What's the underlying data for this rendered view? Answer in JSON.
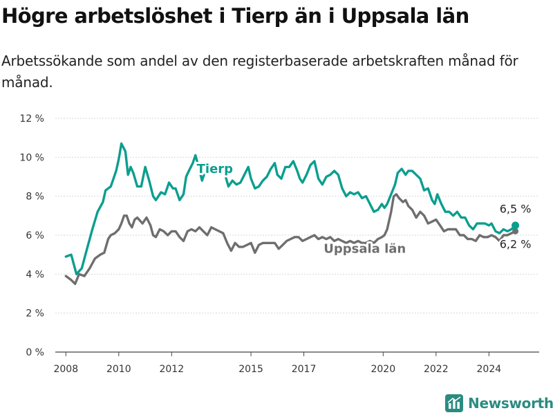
{
  "title": "Högre arbetslöshet i Tierp än i Uppsala län",
  "subtitle": "Arbetssökande som andel av den registerbaserade arbetskraften månad för månad.",
  "brand": "Newsworthy",
  "colors": {
    "tierp": "#0b9e8f",
    "uppsala": "#6e6e6e",
    "grid": "#d7d7d7",
    "brand": "#2a8c80"
  },
  "chart_data": {
    "type": "line",
    "xlim": [
      2007.6,
      2025.9
    ],
    "ylim": [
      0,
      12
    ],
    "y_ticks": [
      0,
      2,
      4,
      6,
      8,
      10,
      12
    ],
    "y_tick_labels": [
      "0 %",
      "2 %",
      "4 %",
      "6 %",
      "8 %",
      "10 %",
      "12 %"
    ],
    "x_ticks": [
      2008,
      2010,
      2012,
      2015,
      2017,
      2020,
      2022,
      2024
    ],
    "x_tick_labels": [
      "2008",
      "2010",
      "2012",
      "2015",
      "2017",
      "2020",
      "2022",
      "2024"
    ],
    "grid": true,
    "series": [
      {
        "name": "Tierp",
        "end_label": "6,5 %",
        "points": [
          [
            2008.0,
            4.9
          ],
          [
            2008.2,
            5.0
          ],
          [
            2008.4,
            4.0
          ],
          [
            2008.6,
            4.3
          ],
          [
            2008.8,
            5.3
          ],
          [
            2009.0,
            6.3
          ],
          [
            2009.2,
            7.2
          ],
          [
            2009.4,
            7.7
          ],
          [
            2009.5,
            8.3
          ],
          [
            2009.7,
            8.5
          ],
          [
            2009.9,
            9.3
          ],
          [
            2010.0,
            9.9
          ],
          [
            2010.1,
            10.7
          ],
          [
            2010.25,
            10.3
          ],
          [
            2010.35,
            9.1
          ],
          [
            2010.45,
            9.5
          ],
          [
            2010.55,
            9.2
          ],
          [
            2010.7,
            8.5
          ],
          [
            2010.85,
            8.5
          ],
          [
            2011.0,
            9.5
          ],
          [
            2011.15,
            8.8
          ],
          [
            2011.3,
            8.0
          ],
          [
            2011.4,
            7.8
          ],
          [
            2011.6,
            8.2
          ],
          [
            2011.75,
            8.1
          ],
          [
            2011.9,
            8.7
          ],
          [
            2012.05,
            8.4
          ],
          [
            2012.15,
            8.4
          ],
          [
            2012.3,
            7.8
          ],
          [
            2012.45,
            8.1
          ],
          [
            2012.55,
            9.0
          ],
          [
            2012.65,
            9.3
          ],
          [
            2012.8,
            9.7
          ],
          [
            2012.9,
            10.1
          ],
          [
            2013.0,
            9.6
          ],
          [
            2013.15,
            8.8
          ],
          [
            2013.3,
            9.4
          ],
          [
            2013.5,
            9.2
          ],
          [
            2013.7,
            9.5
          ],
          [
            2013.9,
            9.4
          ],
          [
            2014.0,
            9.2
          ],
          [
            2014.15,
            8.5
          ],
          [
            2014.3,
            8.8
          ],
          [
            2014.45,
            8.6
          ],
          [
            2014.6,
            8.7
          ],
          [
            2014.75,
            9.1
          ],
          [
            2014.9,
            9.5
          ],
          [
            2015.0,
            8.9
          ],
          [
            2015.15,
            8.4
          ],
          [
            2015.3,
            8.5
          ],
          [
            2015.45,
            8.8
          ],
          [
            2015.6,
            9.0
          ],
          [
            2015.75,
            9.4
          ],
          [
            2015.9,
            9.7
          ],
          [
            2016.0,
            9.1
          ],
          [
            2016.15,
            8.9
          ],
          [
            2016.3,
            9.5
          ],
          [
            2016.45,
            9.5
          ],
          [
            2016.6,
            9.8
          ],
          [
            2016.75,
            9.3
          ],
          [
            2016.85,
            8.9
          ],
          [
            2016.95,
            8.7
          ],
          [
            2017.1,
            9.1
          ],
          [
            2017.25,
            9.6
          ],
          [
            2017.4,
            9.8
          ],
          [
            2017.55,
            8.9
          ],
          [
            2017.7,
            8.6
          ],
          [
            2017.85,
            9.0
          ],
          [
            2018.0,
            9.1
          ],
          [
            2018.15,
            9.3
          ],
          [
            2018.3,
            9.1
          ],
          [
            2018.45,
            8.4
          ],
          [
            2018.6,
            8.0
          ],
          [
            2018.75,
            8.2
          ],
          [
            2018.9,
            8.1
          ],
          [
            2019.05,
            8.2
          ],
          [
            2019.2,
            7.9
          ],
          [
            2019.35,
            8.0
          ],
          [
            2019.5,
            7.6
          ],
          [
            2019.65,
            7.2
          ],
          [
            2019.8,
            7.3
          ],
          [
            2019.95,
            7.6
          ],
          [
            2020.05,
            7.4
          ],
          [
            2020.15,
            7.6
          ],
          [
            2020.3,
            8.1
          ],
          [
            2020.45,
            8.6
          ],
          [
            2020.55,
            9.2
          ],
          [
            2020.7,
            9.4
          ],
          [
            2020.85,
            9.1
          ],
          [
            2020.95,
            9.3
          ],
          [
            2021.1,
            9.3
          ],
          [
            2021.25,
            9.1
          ],
          [
            2021.4,
            8.9
          ],
          [
            2021.55,
            8.3
          ],
          [
            2021.7,
            8.4
          ],
          [
            2021.85,
            7.8
          ],
          [
            2021.95,
            7.6
          ],
          [
            2022.05,
            8.1
          ],
          [
            2022.2,
            7.6
          ],
          [
            2022.35,
            7.2
          ],
          [
            2022.5,
            7.2
          ],
          [
            2022.65,
            7.0
          ],
          [
            2022.8,
            7.2
          ],
          [
            2022.95,
            6.9
          ],
          [
            2023.1,
            6.9
          ],
          [
            2023.25,
            6.5
          ],
          [
            2023.4,
            6.3
          ],
          [
            2023.55,
            6.6
          ],
          [
            2023.7,
            6.6
          ],
          [
            2023.85,
            6.6
          ],
          [
            2024.0,
            6.5
          ],
          [
            2024.1,
            6.6
          ],
          [
            2024.25,
            6.2
          ],
          [
            2024.4,
            6.1
          ],
          [
            2024.55,
            6.3
          ],
          [
            2024.7,
            6.2
          ],
          [
            2024.85,
            6.3
          ],
          [
            2025.0,
            6.5
          ]
        ]
      },
      {
        "name": "Uppsala län",
        "end_label": "6,2 %",
        "points": [
          [
            2008.0,
            3.9
          ],
          [
            2008.2,
            3.7
          ],
          [
            2008.35,
            3.5
          ],
          [
            2008.5,
            4.0
          ],
          [
            2008.7,
            3.9
          ],
          [
            2008.9,
            4.3
          ],
          [
            2009.1,
            4.8
          ],
          [
            2009.3,
            5.0
          ],
          [
            2009.45,
            5.1
          ],
          [
            2009.6,
            5.8
          ],
          [
            2009.7,
            6.0
          ],
          [
            2009.85,
            6.1
          ],
          [
            2010.0,
            6.3
          ],
          [
            2010.1,
            6.6
          ],
          [
            2010.2,
            7.0
          ],
          [
            2010.3,
            7.0
          ],
          [
            2010.4,
            6.6
          ],
          [
            2010.5,
            6.4
          ],
          [
            2010.6,
            6.8
          ],
          [
            2010.7,
            6.9
          ],
          [
            2010.9,
            6.6
          ],
          [
            2011.05,
            6.9
          ],
          [
            2011.2,
            6.5
          ],
          [
            2011.3,
            6.0
          ],
          [
            2011.4,
            5.9
          ],
          [
            2011.55,
            6.3
          ],
          [
            2011.7,
            6.2
          ],
          [
            2011.85,
            6.0
          ],
          [
            2012.0,
            6.2
          ],
          [
            2012.15,
            6.2
          ],
          [
            2012.3,
            5.9
          ],
          [
            2012.45,
            5.7
          ],
          [
            2012.6,
            6.2
          ],
          [
            2012.75,
            6.3
          ],
          [
            2012.9,
            6.2
          ],
          [
            2013.05,
            6.4
          ],
          [
            2013.2,
            6.2
          ],
          [
            2013.35,
            6.0
          ],
          [
            2013.5,
            6.4
          ],
          [
            2013.65,
            6.3
          ],
          [
            2013.8,
            6.2
          ],
          [
            2013.95,
            6.1
          ],
          [
            2014.1,
            5.6
          ],
          [
            2014.25,
            5.2
          ],
          [
            2014.4,
            5.6
          ],
          [
            2014.55,
            5.4
          ],
          [
            2014.7,
            5.4
          ],
          [
            2014.85,
            5.5
          ],
          [
            2015.0,
            5.6
          ],
          [
            2015.15,
            5.1
          ],
          [
            2015.3,
            5.5
          ],
          [
            2015.45,
            5.6
          ],
          [
            2015.6,
            5.6
          ],
          [
            2015.75,
            5.6
          ],
          [
            2015.9,
            5.6
          ],
          [
            2016.05,
            5.3
          ],
          [
            2016.2,
            5.5
          ],
          [
            2016.35,
            5.7
          ],
          [
            2016.5,
            5.8
          ],
          [
            2016.65,
            5.9
          ],
          [
            2016.8,
            5.9
          ],
          [
            2016.95,
            5.7
          ],
          [
            2017.1,
            5.8
          ],
          [
            2017.25,
            5.9
          ],
          [
            2017.4,
            6.0
          ],
          [
            2017.55,
            5.8
          ],
          [
            2017.7,
            5.9
          ],
          [
            2017.85,
            5.8
          ],
          [
            2018.0,
            5.9
          ],
          [
            2018.15,
            5.7
          ],
          [
            2018.3,
            5.8
          ],
          [
            2018.45,
            5.7
          ],
          [
            2018.6,
            5.6
          ],
          [
            2018.75,
            5.7
          ],
          [
            2018.9,
            5.6
          ],
          [
            2019.05,
            5.7
          ],
          [
            2019.2,
            5.6
          ],
          [
            2019.35,
            5.6
          ],
          [
            2019.5,
            5.7
          ],
          [
            2019.65,
            5.6
          ],
          [
            2019.8,
            5.8
          ],
          [
            2019.95,
            5.9
          ],
          [
            2020.05,
            6.0
          ],
          [
            2020.15,
            6.3
          ],
          [
            2020.3,
            7.2
          ],
          [
            2020.4,
            8.0
          ],
          [
            2020.5,
            8.1
          ],
          [
            2020.6,
            7.9
          ],
          [
            2020.75,
            7.7
          ],
          [
            2020.85,
            7.8
          ],
          [
            2020.95,
            7.5
          ],
          [
            2021.1,
            7.3
          ],
          [
            2021.25,
            6.9
          ],
          [
            2021.4,
            7.2
          ],
          [
            2021.55,
            7.0
          ],
          [
            2021.7,
            6.6
          ],
          [
            2021.85,
            6.7
          ],
          [
            2022.0,
            6.8
          ],
          [
            2022.15,
            6.5
          ],
          [
            2022.3,
            6.2
          ],
          [
            2022.45,
            6.3
          ],
          [
            2022.6,
            6.3
          ],
          [
            2022.75,
            6.3
          ],
          [
            2022.9,
            6.0
          ],
          [
            2023.05,
            6.0
          ],
          [
            2023.2,
            5.8
          ],
          [
            2023.35,
            5.8
          ],
          [
            2023.5,
            5.7
          ],
          [
            2023.65,
            6.0
          ],
          [
            2023.8,
            5.9
          ],
          [
            2023.95,
            5.9
          ],
          [
            2024.1,
            6.0
          ],
          [
            2024.25,
            5.9
          ],
          [
            2024.4,
            5.7
          ],
          [
            2024.55,
            6.0
          ],
          [
            2024.7,
            6.0
          ],
          [
            2024.85,
            6.1
          ],
          [
            2025.0,
            6.2
          ]
        ]
      }
    ]
  }
}
